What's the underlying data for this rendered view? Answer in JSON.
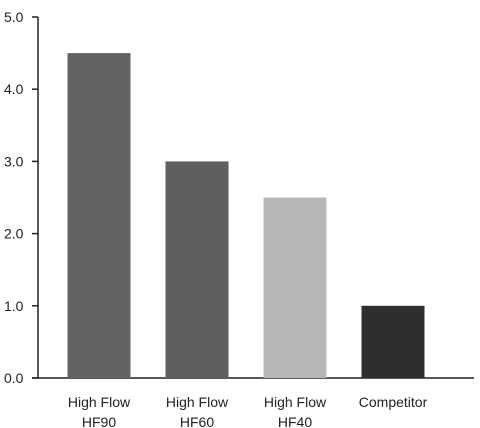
{
  "chart_data": {
    "type": "bar",
    "title": "",
    "xlabel": "",
    "ylabel": "",
    "categories": [
      [
        "High Flow",
        "HF90"
      ],
      [
        "High Flow",
        "HF60"
      ],
      [
        "High Flow",
        "HF40"
      ],
      [
        "Competitor"
      ]
    ],
    "values": [
      4.5,
      3.0,
      2.5,
      1.0
    ],
    "bar_colors": [
      "#636363",
      "#5f5f5f",
      "#b7b7b7",
      "#2e2e2e"
    ],
    "ylim": [
      0,
      5
    ],
    "yticks": [
      "0.0",
      "1.0",
      "2.0",
      "3.0",
      "4.0",
      "5.0"
    ],
    "grid": false,
    "axis_color": "#222222"
  }
}
